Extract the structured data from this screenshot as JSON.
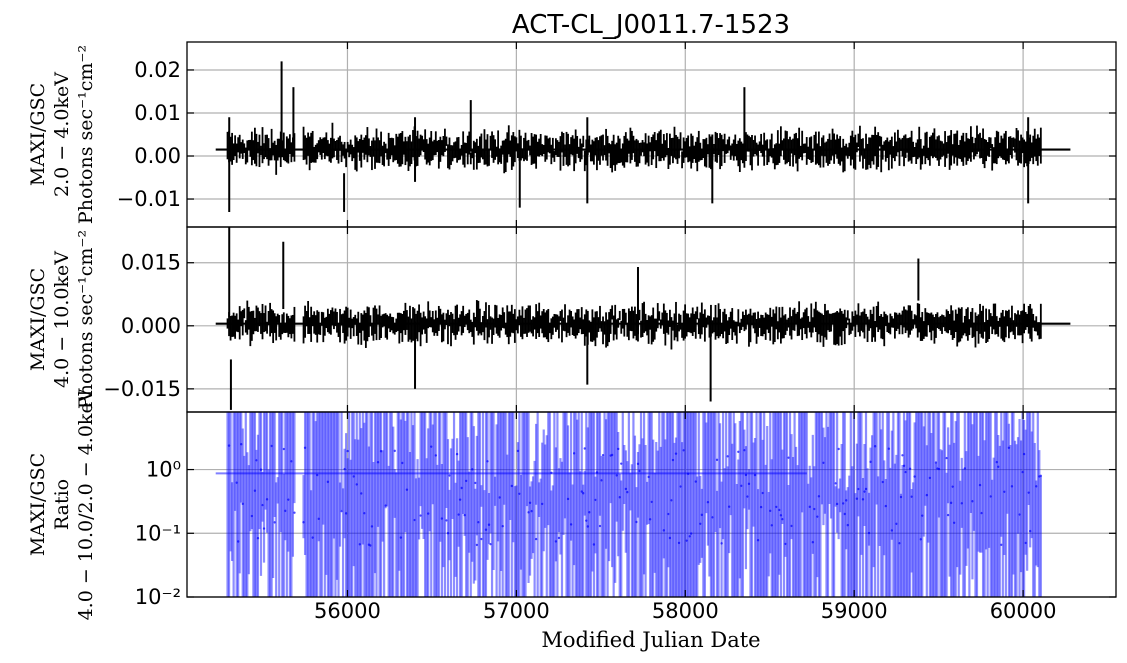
{
  "chart_data": {
    "type": "line",
    "title": "ACT-CL_J0011.7-1523",
    "xlabel": "Modified Julian Date",
    "xlim": [
      55050,
      60550
    ],
    "xticks": [
      56000,
      57000,
      58000,
      59000,
      60000
    ],
    "xtick_labels": [
      "56000",
      "57000",
      "58000",
      "59000",
      "60000"
    ],
    "x_start": 55290,
    "x_end": 60110,
    "grid": true,
    "panels": [
      {
        "name": "panel-soft",
        "ylabel_lines": [
          "MAXI/GSC",
          "2.0 − 4.0keV",
          "Photons sec⁻¹cm⁻²"
        ],
        "ylim": [
          -0.0165,
          0.0265
        ],
        "yscale": "linear",
        "yticks": [
          -0.01,
          0.0,
          0.01,
          0.02
        ],
        "ytick_labels": [
          "−0.01",
          "0.00",
          "0.01",
          "0.02"
        ],
        "color": "#000000",
        "mean": 0.0015,
        "spread": 0.0035,
        "spikes": [
          {
            "x": 55300,
            "hi": 0.009,
            "lo": -0.013
          },
          {
            "x": 55610,
            "hi": 0.022,
            "lo": 0.003
          },
          {
            "x": 55680,
            "hi": 0.016,
            "lo": 0.002
          },
          {
            "x": 55980,
            "hi": -0.004,
            "lo": -0.013
          },
          {
            "x": 56400,
            "hi": 0.009,
            "lo": -0.006
          },
          {
            "x": 56730,
            "hi": 0.013,
            "lo": 0.001
          },
          {
            "x": 57020,
            "hi": 0.002,
            "lo": -0.012
          },
          {
            "x": 57420,
            "hi": 0.009,
            "lo": -0.011
          },
          {
            "x": 58350,
            "hi": 0.016,
            "lo": 0.002
          },
          {
            "x": 58160,
            "hi": 0.005,
            "lo": -0.011
          },
          {
            "x": 60030,
            "hi": 0.009,
            "lo": -0.011
          }
        ],
        "hline": {
          "x_from": 55220,
          "x_to": 60280,
          "y": 0.0015
        }
      },
      {
        "name": "panel-hard",
        "ylabel_lines": [
          "MAXI/GSC",
          "4.0 − 10.0keV",
          "Photons sec⁻¹cm⁻²"
        ],
        "ylim": [
          -0.0205,
          0.0235
        ],
        "yscale": "linear",
        "yticks": [
          -0.015,
          0.0,
          0.015
        ],
        "ytick_labels": [
          "−0.015",
          "0.000",
          "0.015"
        ],
        "color": "#000000",
        "mean": 0.0005,
        "spread": 0.0035,
        "spikes": [
          {
            "x": 55300,
            "hi": 0.025,
            "lo": 0.002
          },
          {
            "x": 55310,
            "hi": -0.008,
            "lo": -0.02
          },
          {
            "x": 55620,
            "hi": 0.02,
            "lo": 0.004
          },
          {
            "x": 56400,
            "hi": 0.001,
            "lo": -0.015
          },
          {
            "x": 57720,
            "hi": 0.014,
            "lo": -0.002
          },
          {
            "x": 58150,
            "hi": 0.002,
            "lo": -0.018
          },
          {
            "x": 59380,
            "hi": 0.016,
            "lo": 0.006
          },
          {
            "x": 57420,
            "hi": 0.002,
            "lo": -0.014
          }
        ],
        "hline": {
          "x_from": 55220,
          "x_to": 60280,
          "y": 0.0005
        }
      },
      {
        "name": "panel-ratio",
        "ylabel_lines": [
          "MAXI/GSC",
          "Ratio",
          "4.0 − 10.0/2.0 − 4.0keV"
        ],
        "ylim": [
          0.01,
          8.0
        ],
        "yscale": "log",
        "yticks": [
          0.01,
          0.1,
          1.0
        ],
        "ytick_labels": [
          "10⁻²",
          "10⁻¹",
          "10⁰"
        ],
        "color": "#0000ff",
        "hline": {
          "x_from": 55220,
          "x_to": 58720,
          "y": 0.87
        }
      }
    ]
  }
}
